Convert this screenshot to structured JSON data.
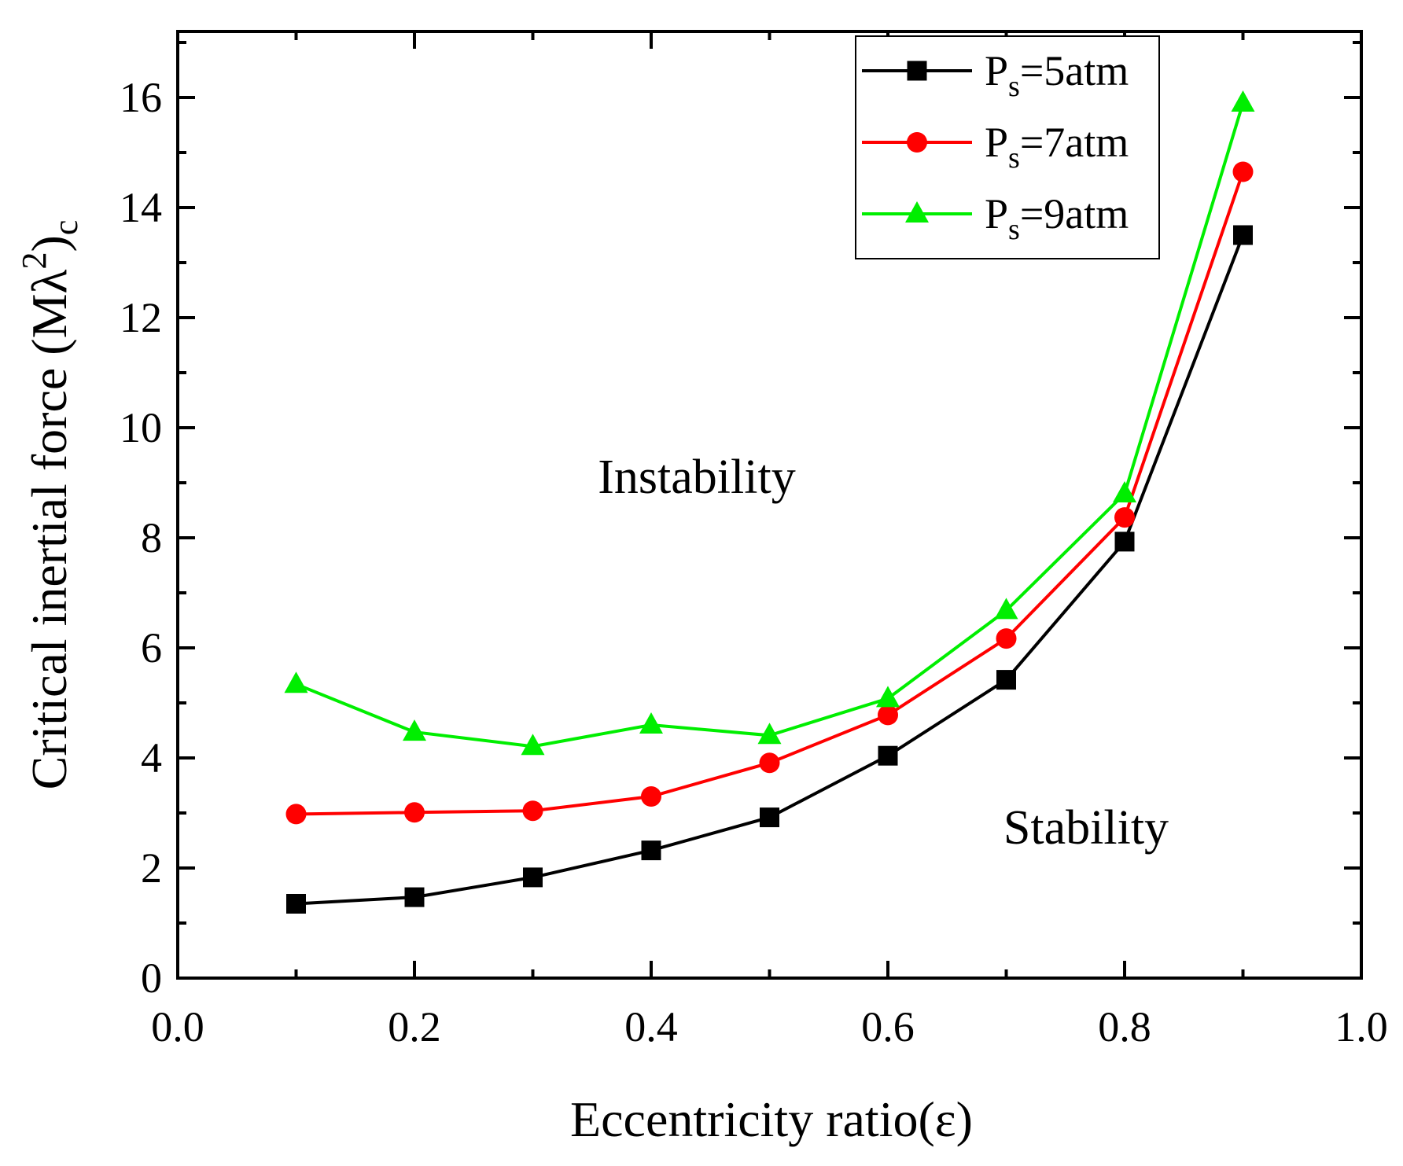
{
  "chart_data": {
    "type": "line",
    "xlabel": "Eccentricity ratio(ε)",
    "ylabel_main": "Critical inertial force (Mλ",
    "ylabel_sup": "2",
    "ylabel_close": ")",
    "ylabel_sub": "c",
    "xlim": [
      0,
      1.0
    ],
    "ylim": [
      0,
      17.2
    ],
    "xticks": [
      "0.0",
      "0.2",
      "0.4",
      "0.6",
      "0.8",
      "1.0"
    ],
    "xtick_values": [
      0,
      0.2,
      0.4,
      0.6,
      0.8,
      1.0
    ],
    "yticks": [
      "0",
      "2",
      "4",
      "6",
      "8",
      "10",
      "12",
      "14",
      "16"
    ],
    "ytick_values": [
      0,
      2,
      4,
      6,
      8,
      10,
      12,
      14,
      16
    ],
    "grid": false,
    "legend_placement": "top-right",
    "x": [
      0.1,
      0.2,
      0.3,
      0.4,
      0.5,
      0.6,
      0.7,
      0.8,
      0.9
    ],
    "series": [
      {
        "name": "Ps=5atm",
        "label_main": "P",
        "label_sub": "s",
        "label_rest": "=5atm",
        "color": "#000000",
        "marker": "square",
        "values": [
          1.35,
          1.47,
          1.83,
          2.32,
          2.92,
          4.04,
          5.42,
          7.93,
          13.5
        ]
      },
      {
        "name": "Ps=7atm",
        "label_main": "P",
        "label_sub": "s",
        "label_rest": "=7atm",
        "color": "#ff0000",
        "marker": "circle",
        "values": [
          2.98,
          3.01,
          3.04,
          3.3,
          3.91,
          4.78,
          6.17,
          8.37,
          14.65
        ]
      },
      {
        "name": "Ps=9atm",
        "label_main": "P",
        "label_sub": "s",
        "label_rest": "=9atm",
        "color": "#00ee00",
        "marker": "triangle",
        "values": [
          5.34,
          4.47,
          4.21,
          4.6,
          4.41,
          5.08,
          6.68,
          8.8,
          15.9
        ]
      }
    ],
    "annotations": [
      "Instability",
      "Stability"
    ]
  }
}
